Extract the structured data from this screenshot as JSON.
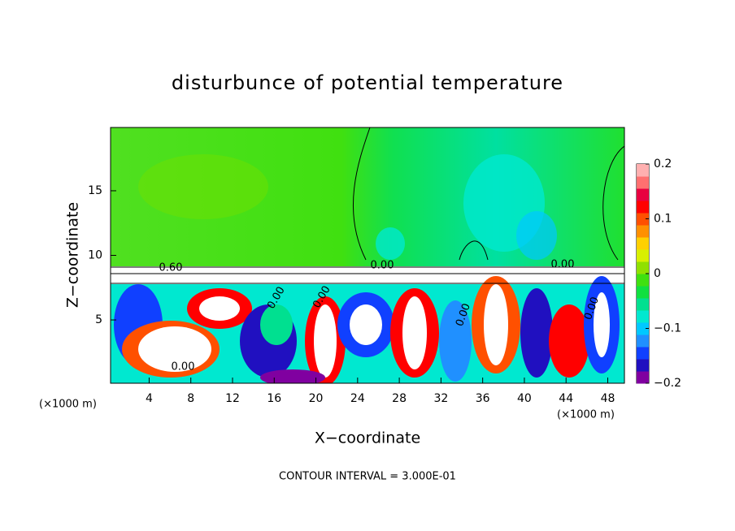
{
  "chart_data": {
    "type": "contour",
    "title": "disturbunce of potential temperature",
    "xlabel": "X−coordinate",
    "ylabel": "Z−coordinate",
    "x_unit_left": "(×1000 m)",
    "x_unit_right": "(×1000 m)",
    "footnote": "CONTOUR INTERVAL = 3.000E-01",
    "xlim": [
      0.3,
      49.6
    ],
    "xticks": [
      4,
      8,
      12,
      16,
      20,
      24,
      28,
      32,
      36,
      40,
      44,
      48
    ],
    "ylim": [
      0.1,
      19.9
    ],
    "yticks": [
      5,
      10,
      15
    ],
    "colorbar_lim": [
      -0.2,
      0.2
    ],
    "colorbar_ticks": [
      0.2,
      0.1,
      0,
      {
        "value": -0.1,
        "label": "−0.1"
      },
      {
        "value": -0.2,
        "label": "−0.2"
      }
    ],
    "colorbar_colors": [
      "#8000a0",
      "#2010c0",
      "#1040ff",
      "#2090ff",
      "#00c8ff",
      "#00e8d0",
      "#00e090",
      "#10e040",
      "#40e010",
      "#90e000",
      "#d8f000",
      "#ffd000",
      "#ff9000",
      "#ff5000",
      "#ff0000",
      "#e80040",
      "#ff7070",
      "#ffb0b0"
    ],
    "contour_labels": [
      "0.60",
      "0.00",
      "0.00",
      "0.00",
      "0.00",
      "0.00",
      "0.00",
      "0.00"
    ]
  }
}
